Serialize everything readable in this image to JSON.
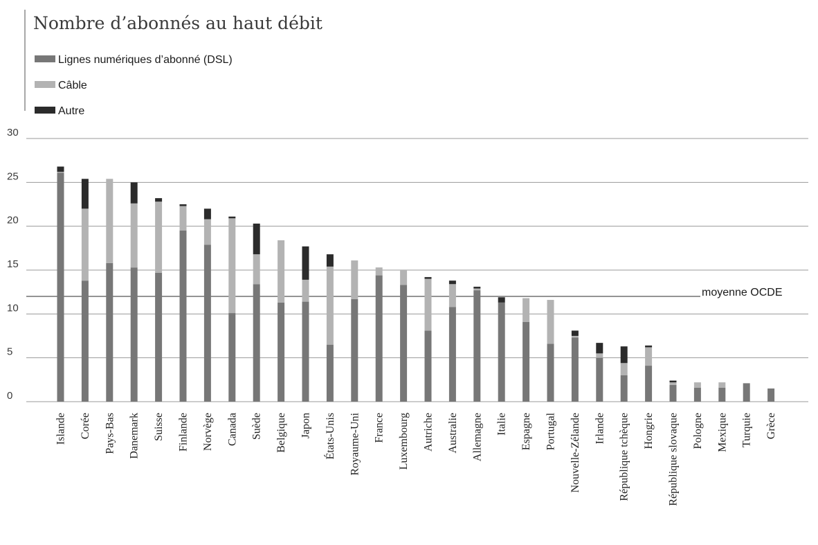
{
  "colors": {
    "dsl": "#777777",
    "cable": "#b3b3b3",
    "other": "#2b2b2b",
    "grid": "#9a9a9a",
    "average_line": "#555555"
  },
  "chart_data": {
    "type": "bar",
    "stacked": true,
    "title": "Nombre d’abonnés au haut débit",
    "xlabel": "",
    "ylabel": "",
    "ylim": [
      0,
      30
    ],
    "yticks": [
      "0",
      "5",
      "10",
      "15",
      "20",
      "25",
      "30"
    ],
    "grid": true,
    "legend_position": "top-left",
    "average": {
      "label": "moyenne OCDE",
      "value": 12.0
    },
    "categories": [
      "Islande",
      "Corée",
      "Pays-Bas",
      "Danemark",
      "Suisse",
      "Finlande",
      "Norvège",
      "Canada",
      "Suède",
      "Belgique",
      "Japon",
      "États-Unis",
      "Royaume-Uni",
      "France",
      "Luxembourg",
      "Autriche",
      "Australie",
      "Allemagne",
      "Italie",
      "Espagne",
      "Portugal",
      "Nouvelle-Zélande",
      "Irlande",
      "République tchèque",
      "Hongrie",
      "République slovaque",
      "Pologne",
      "Mexique",
      "Turquie",
      "Grèce"
    ],
    "series": [
      {
        "name": "Lignes numériques d’abonné (DSL)",
        "color_key": "dsl",
        "values": [
          26.1,
          13.8,
          15.8,
          15.3,
          14.7,
          19.5,
          17.9,
          10.1,
          13.4,
          11.3,
          11.4,
          6.5,
          11.7,
          14.4,
          13.3,
          8.1,
          10.8,
          12.7,
          11.3,
          9.1,
          6.6,
          7.3,
          5.0,
          3.0,
          4.1,
          1.9,
          1.6,
          1.6,
          2.1,
          1.5
        ]
      },
      {
        "name": "Câble",
        "color_key": "cable",
        "values": [
          0.1,
          8.2,
          9.6,
          7.3,
          8.1,
          2.8,
          2.9,
          10.8,
          3.4,
          7.1,
          2.5,
          8.9,
          4.4,
          0.9,
          1.7,
          5.9,
          2.6,
          0.2,
          0.0,
          2.7,
          5.0,
          0.2,
          0.5,
          1.4,
          2.1,
          0.3,
          0.6,
          0.6,
          0.0,
          0.0
        ]
      },
      {
        "name": "Autre",
        "color_key": "other",
        "values": [
          0.6,
          3.4,
          0.0,
          2.4,
          0.4,
          0.2,
          1.2,
          0.2,
          3.5,
          0.0,
          3.8,
          1.4,
          0.0,
          0.0,
          0.0,
          0.2,
          0.4,
          0.2,
          0.6,
          0.0,
          0.0,
          0.6,
          1.2,
          1.9,
          0.2,
          0.2,
          0.0,
          0.0,
          0.0,
          0.0
        ]
      }
    ]
  }
}
